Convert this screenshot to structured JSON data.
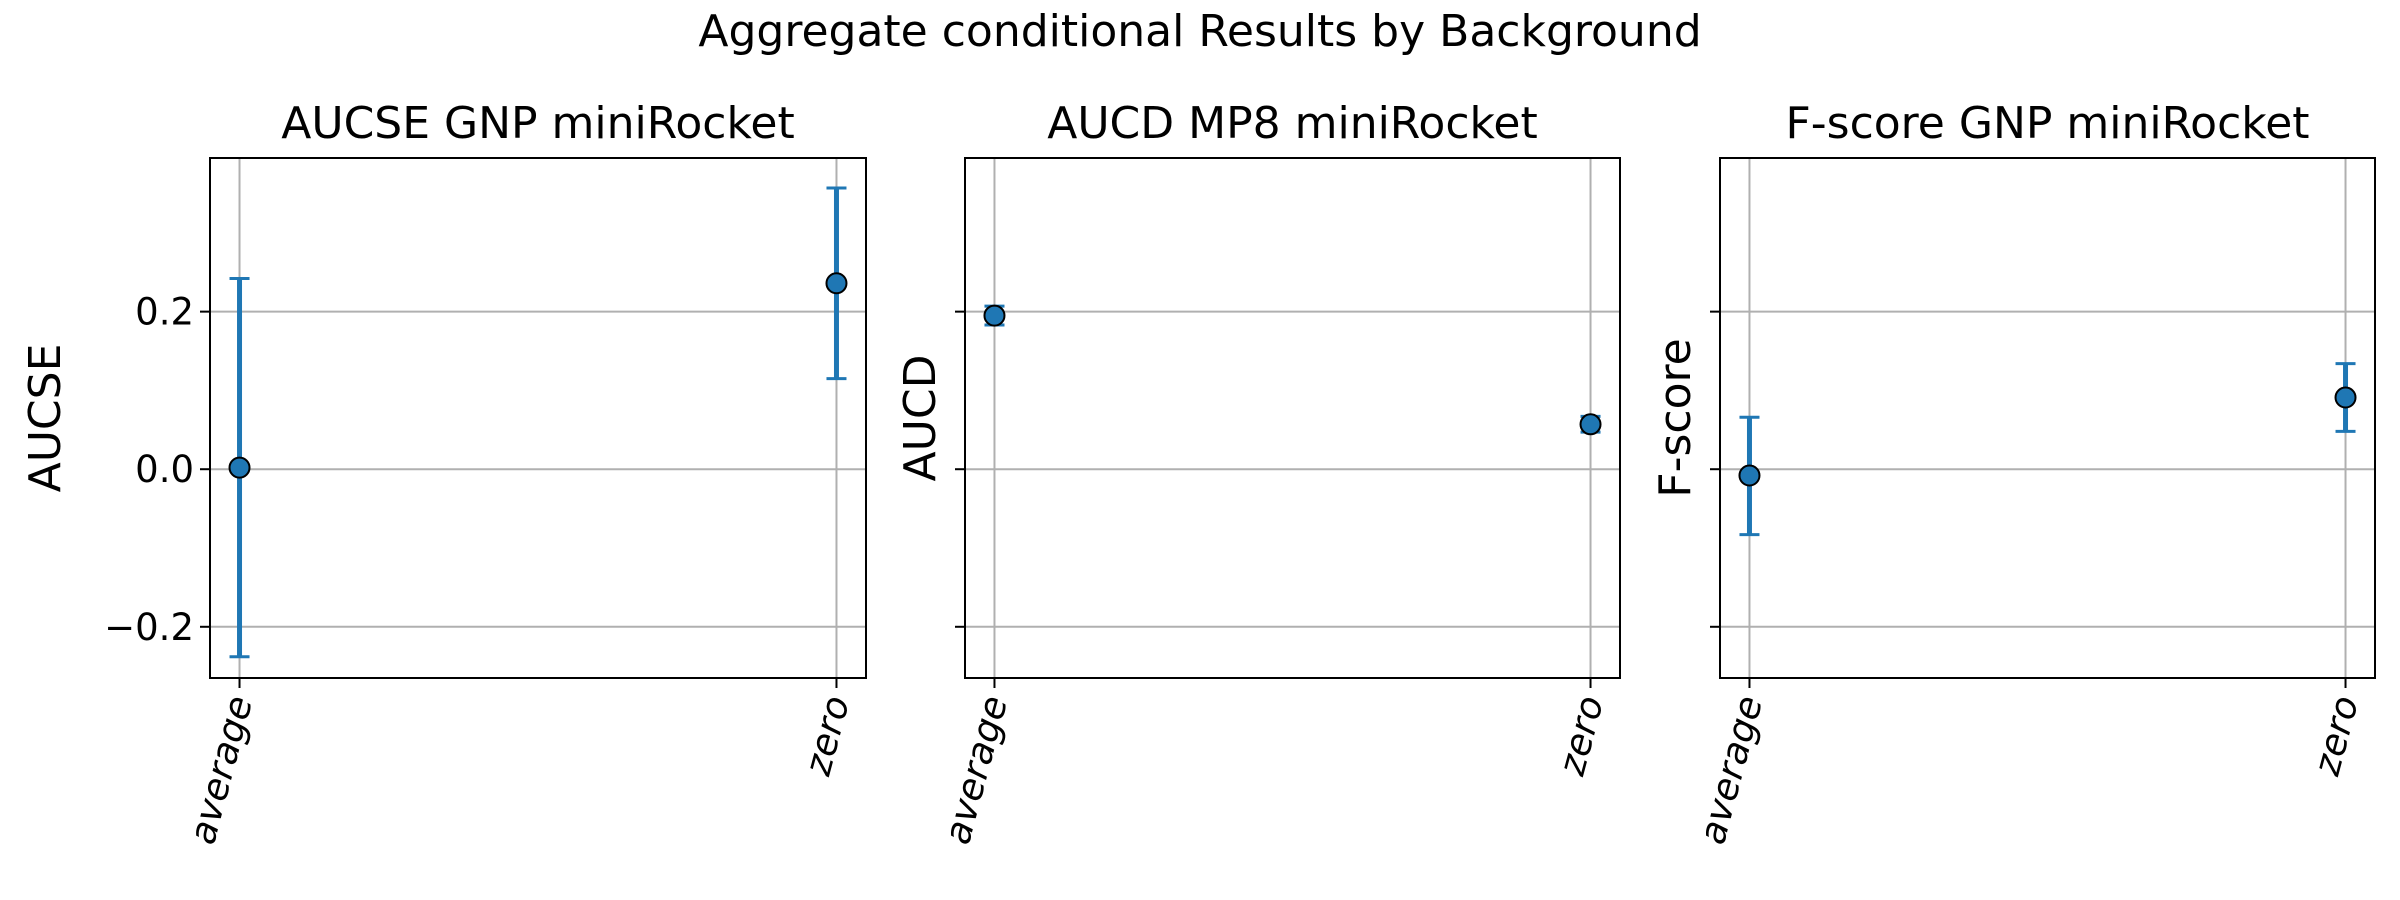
{
  "figure": {
    "suptitle": "Aggregate conditional Results by Background"
  },
  "colors": {
    "series": "#1f77b4",
    "marker_edge": "#000000",
    "grid": "#b0b0b0",
    "axes": "#000000"
  },
  "chart_data": [
    {
      "type": "scatter",
      "title": "AUCSE GNP miniRocket",
      "xlabel": "",
      "ylabel": "AUCSE",
      "categories": [
        "average",
        "zero"
      ],
      "values": [
        0.002,
        0.236
      ],
      "error_low": [
        -0.238,
        0.115
      ],
      "error_high": [
        0.242,
        0.357
      ],
      "ylim": [
        -0.265,
        0.395
      ],
      "yticks": [
        -0.2,
        0.0,
        0.2
      ],
      "ytick_labels": [
        "−0.2",
        "0.0",
        "0.2"
      ],
      "show_ytick_labels": true,
      "grid": true,
      "legend": "none"
    },
    {
      "type": "scatter",
      "title": "AUCD MP8 miniRocket",
      "xlabel": "",
      "ylabel": "AUCD",
      "categories": [
        "average",
        "zero"
      ],
      "values": [
        0.195,
        0.057
      ],
      "error_low": [
        0.183,
        0.047
      ],
      "error_high": [
        0.207,
        0.067
      ],
      "ylim": [
        -0.265,
        0.395
      ],
      "yticks": [
        -0.2,
        0.0,
        0.2
      ],
      "ytick_labels": [
        "−0.2",
        "0.0",
        "0.2"
      ],
      "show_ytick_labels": false,
      "grid": true,
      "legend": "none"
    },
    {
      "type": "scatter",
      "title": "F-score GNP miniRocket",
      "xlabel": "",
      "ylabel": "F-score",
      "categories": [
        "average",
        "zero"
      ],
      "values": [
        -0.008,
        0.091
      ],
      "error_low": [
        -0.083,
        0.048
      ],
      "error_high": [
        0.066,
        0.134
      ],
      "ylim": [
        -0.265,
        0.395
      ],
      "yticks": [
        -0.2,
        0.0,
        0.2
      ],
      "ytick_labels": [
        "−0.2",
        "0.0",
        "0.2"
      ],
      "show_ytick_labels": false,
      "grid": true,
      "legend": "none"
    }
  ]
}
